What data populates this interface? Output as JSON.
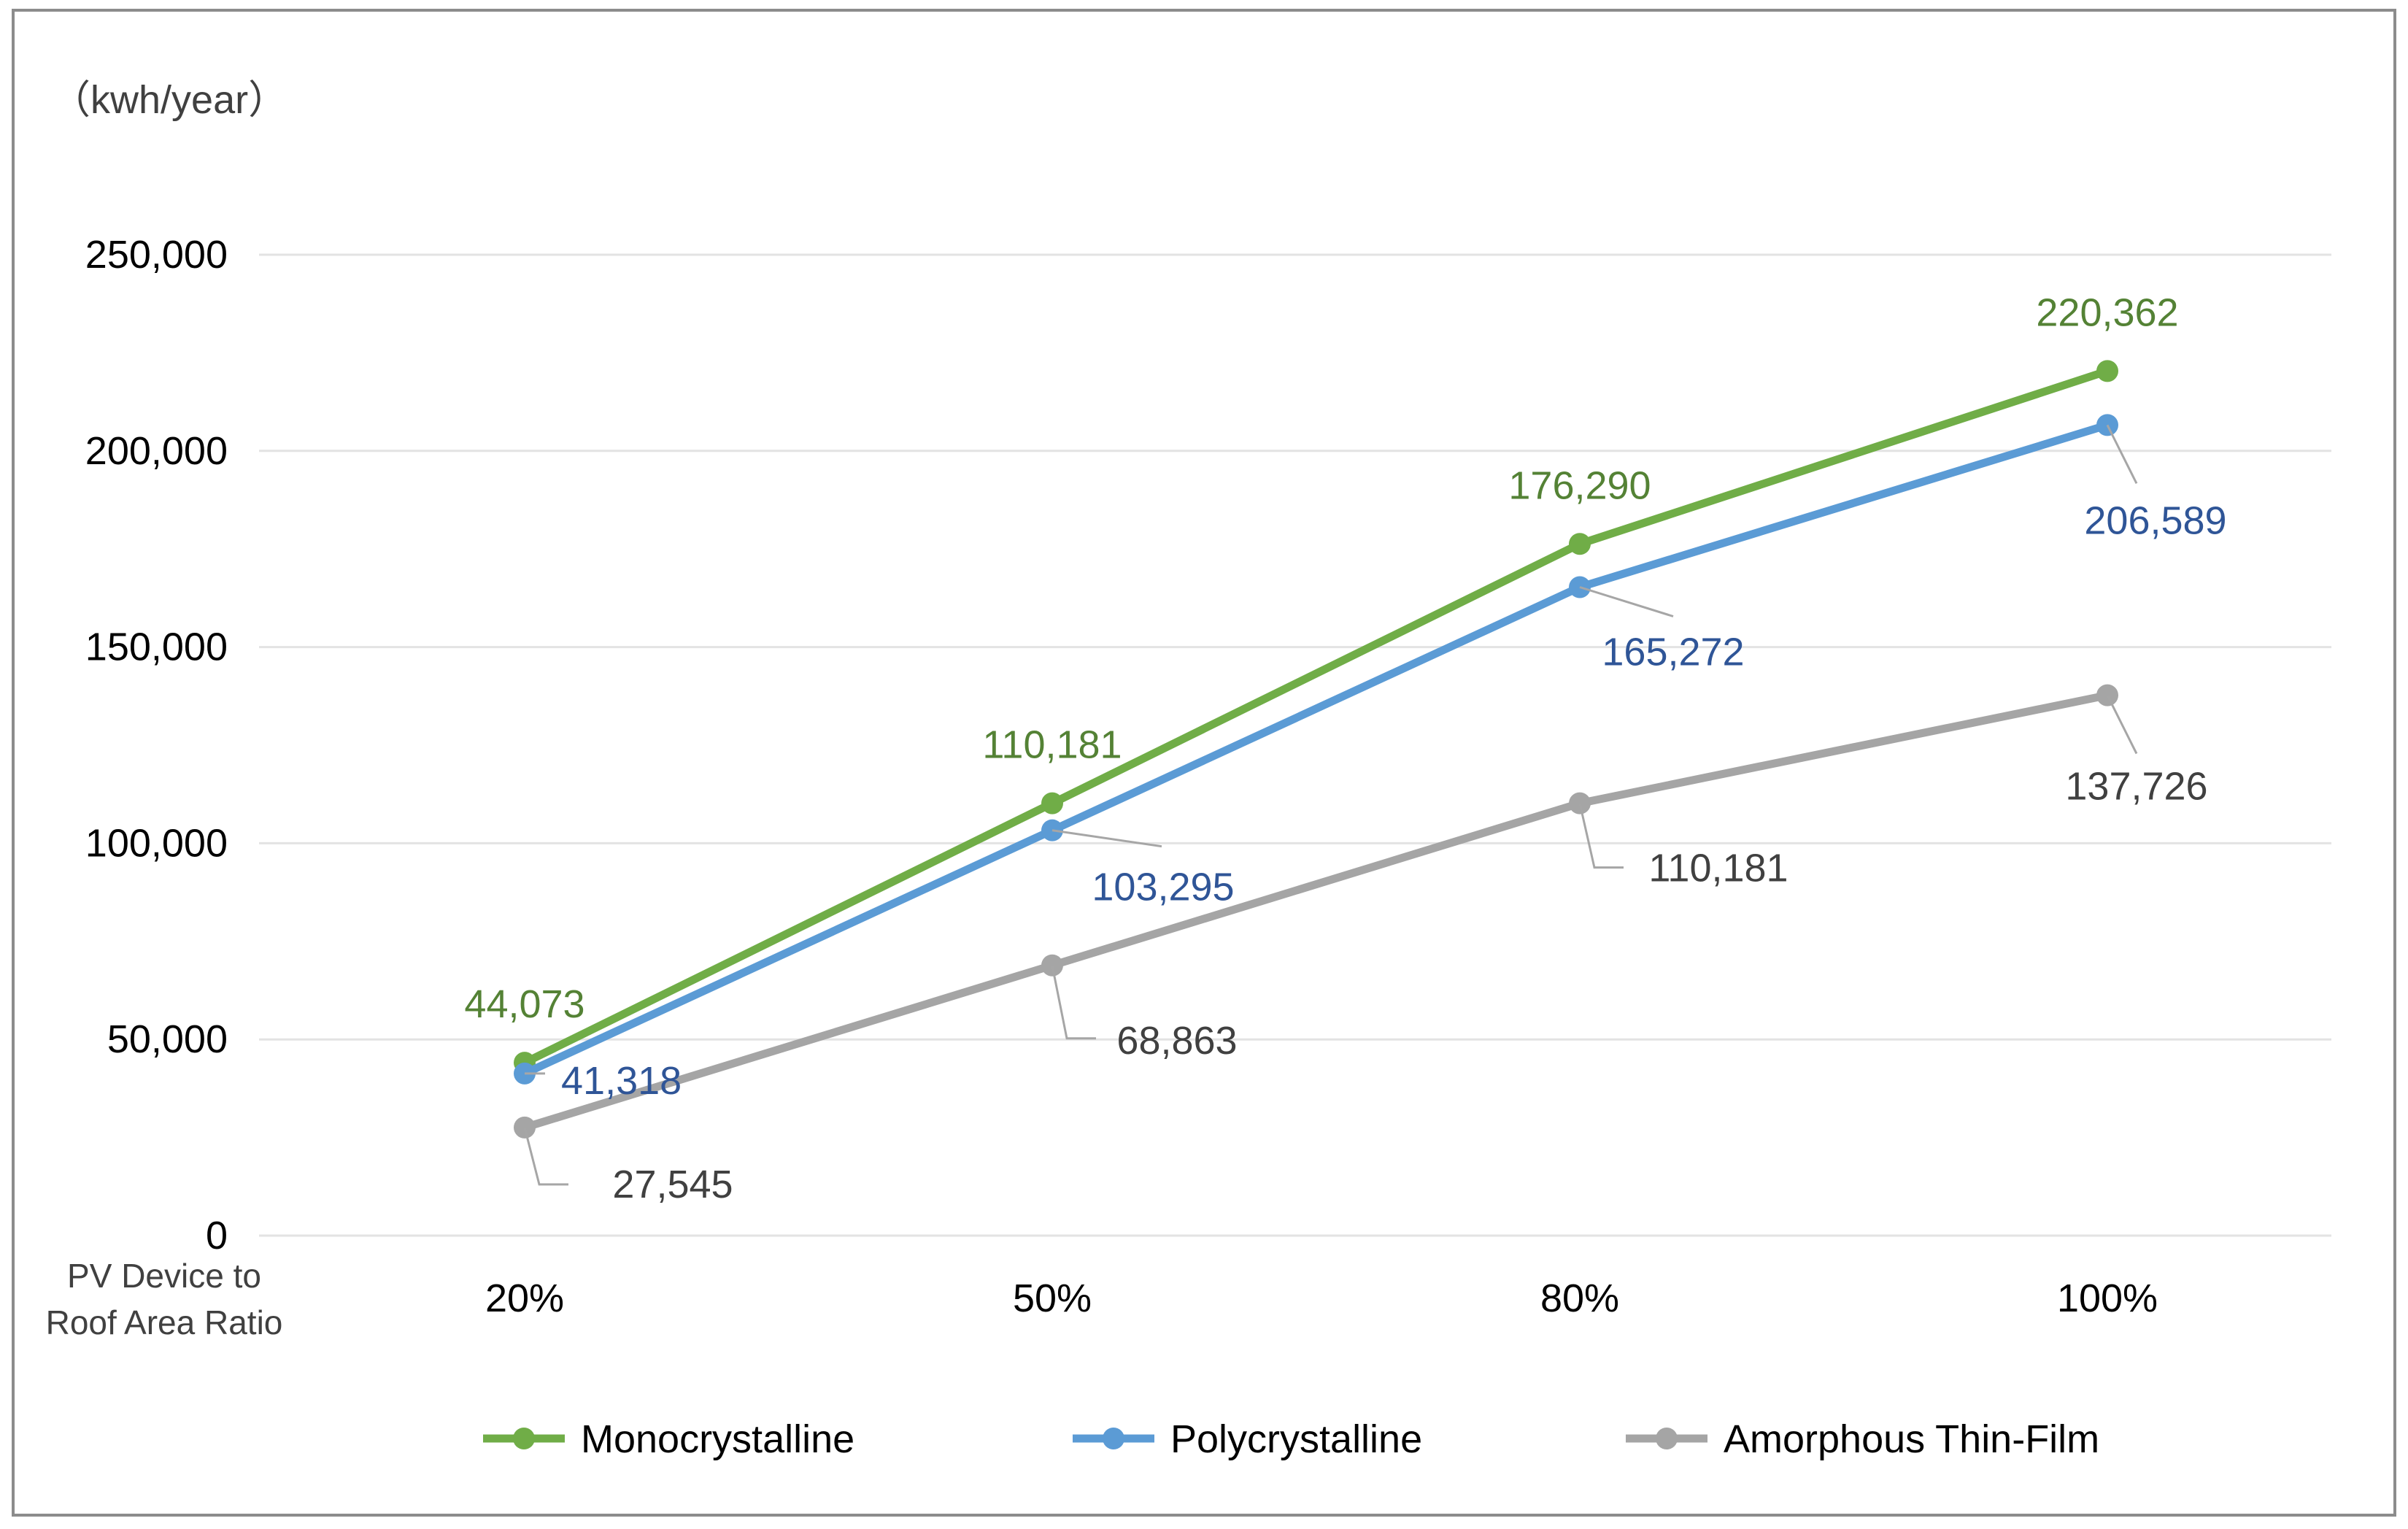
{
  "chart_data": {
    "type": "line",
    "title": "",
    "ylabel": "（kwh/year）",
    "xlabel_lines": [
      "PV Device to",
      "Roof Area Ratio"
    ],
    "categories": [
      "20%",
      "50%",
      "80%",
      "100%"
    ],
    "ylim": [
      0,
      250000
    ],
    "yticks": [
      0,
      50000,
      100000,
      150000,
      200000,
      250000
    ],
    "ytick_labels": [
      "0",
      "50,000",
      "100,000",
      "150,000",
      "200,000",
      "250,000"
    ],
    "grid": true,
    "legend_position": "bottom",
    "series": [
      {
        "name": "Monocrystalline",
        "color": "#70AD47",
        "label_color": "#548235",
        "values": [
          44073,
          110181,
          176290,
          220362
        ],
        "value_labels": [
          "44,073",
          "110,181",
          "176,290",
          "220,362"
        ]
      },
      {
        "name": "Polycrystalline",
        "color": "#5B9BD5",
        "label_color": "#2F5597",
        "values": [
          41318,
          103295,
          165272,
          206589
        ],
        "value_labels": [
          "41,318",
          "103,295",
          "165,272",
          "206,589"
        ]
      },
      {
        "name": "Amorphous Thin-Film",
        "color": "#A5A5A5",
        "label_color": "#404040",
        "values": [
          27545,
          68863,
          110181,
          137726
        ],
        "value_labels": [
          "27,545",
          "68,863",
          "110,181",
          "137,726"
        ]
      }
    ]
  }
}
